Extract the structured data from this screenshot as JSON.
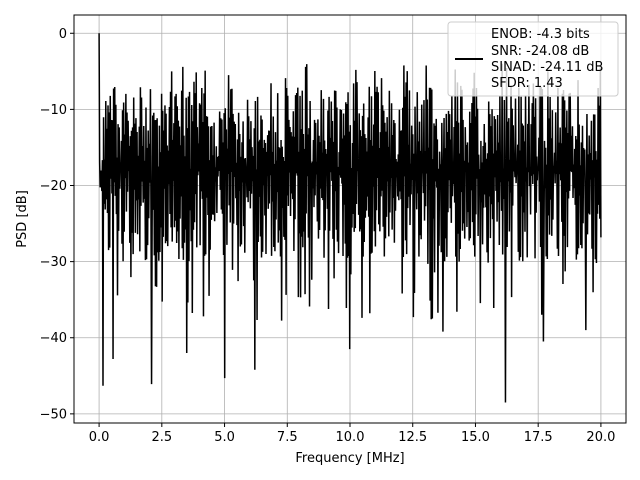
{
  "chart_data": {
    "type": "line",
    "title": "",
    "xlabel": "Frequency [MHz]",
    "ylabel": "PSD [dB]",
    "xlim": [
      -1.0,
      21.0
    ],
    "ylim": [
      -51.2,
      2.4
    ],
    "grid": true,
    "x_ticks": [
      0.0,
      2.5,
      5.0,
      7.5,
      10.0,
      12.5,
      15.0,
      17.5,
      20.0
    ],
    "x_tick_labels": [
      "0.0",
      "2.5",
      "5.0",
      "7.5",
      "10.0",
      "12.5",
      "15.0",
      "17.5",
      "20.0"
    ],
    "y_ticks": [
      0,
      -10,
      -20,
      -30,
      -40,
      -50
    ],
    "y_tick_labels": [
      "0",
      "−10",
      "−20",
      "−30",
      "−40",
      "−50"
    ],
    "series": [
      {
        "color": "#000000",
        "x_range": [
          0.0,
          20.0
        ],
        "points": 900,
        "envelope_upper_approx": -7,
        "envelope_lower_approx": -30,
        "peak": {
          "x": 0.0,
          "y": 0.0
        },
        "deep_dips": [
          {
            "x": 0.15,
            "y": -46.3
          },
          {
            "x": 0.55,
            "y": -42.8
          },
          {
            "x": 2.1,
            "y": -46.1
          },
          {
            "x": 3.5,
            "y": -42.0
          },
          {
            "x": 5.0,
            "y": -45.3
          },
          {
            "x": 6.2,
            "y": -44.2
          },
          {
            "x": 10.0,
            "y": -41.5
          },
          {
            "x": 13.7,
            "y": -39.2
          },
          {
            "x": 16.2,
            "y": -48.5
          },
          {
            "x": 17.7,
            "y": -40.5
          },
          {
            "x": 19.4,
            "y": -39.0
          }
        ]
      }
    ],
    "legend": {
      "placement": "upper-right",
      "entries": [
        "ENOB: -4.3 bits",
        "SNR: -24.08 dB",
        "SINAD: -24.11 dB",
        "SFDR: 1.43"
      ]
    }
  }
}
